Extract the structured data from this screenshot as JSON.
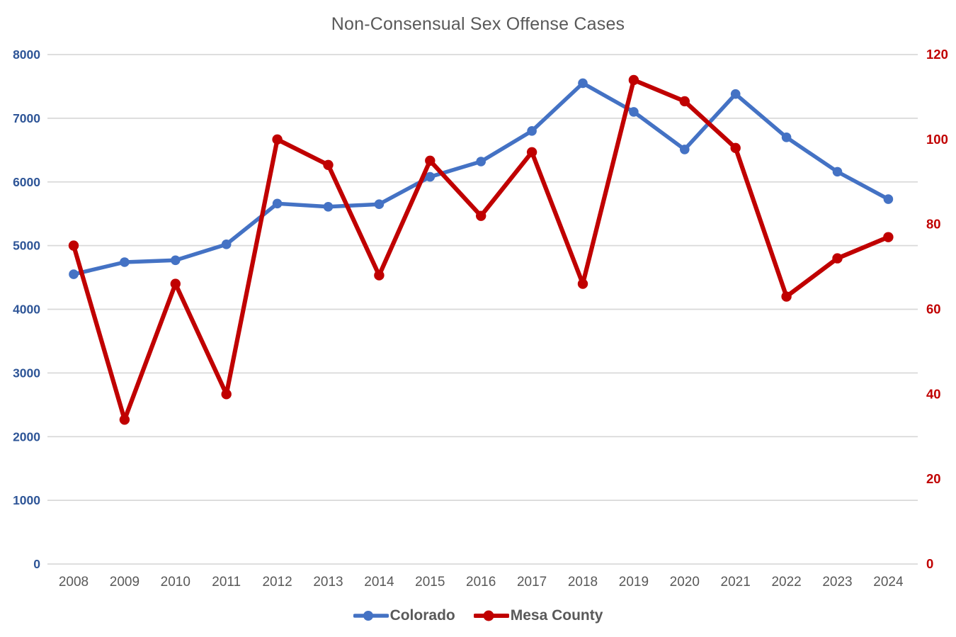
{
  "chart_data": {
    "type": "line",
    "title": "Non-Consensual Sex Offense Cases",
    "categories": [
      "2008",
      "2009",
      "2010",
      "2011",
      "2012",
      "2013",
      "2014",
      "2015",
      "2016",
      "2017",
      "2018",
      "2019",
      "2020",
      "2021",
      "2022",
      "2023",
      "2024"
    ],
    "series": [
      {
        "name": "Colorado",
        "axis": "left",
        "color": "#4472C4",
        "values": [
          4550,
          4740,
          4770,
          5020,
          5660,
          5610,
          5650,
          6080,
          6320,
          6800,
          7550,
          7100,
          6510,
          7380,
          6700,
          6160,
          5730
        ]
      },
      {
        "name": "Mesa County",
        "axis": "right",
        "color": "#C00000",
        "values": [
          75,
          34,
          66,
          40,
          100,
          94,
          68,
          95,
          82,
          97,
          66,
          114,
          109,
          98,
          63,
          72,
          77
        ]
      }
    ],
    "left_axis": {
      "min": 0,
      "max": 8000,
      "step": 1000,
      "tick_labels": [
        "0",
        "1000",
        "2000",
        "3000",
        "4000",
        "5000",
        "6000",
        "7000",
        "8000"
      ],
      "label_color": "#2E5597"
    },
    "right_axis": {
      "min": 0,
      "max": 120,
      "step": 20,
      "tick_labels": [
        "0",
        "20",
        "40",
        "60",
        "80",
        "100",
        "120"
      ],
      "label_color": "#C00000"
    },
    "grid": true,
    "gridline_color": "#D9D9D9",
    "xlabel": "",
    "ylabel": "",
    "x_tick_color": "#595959",
    "title_color": "#595959",
    "legend_position": "bottom"
  },
  "legend": {
    "items": [
      {
        "label": "Colorado",
        "color": "#4472C4"
      },
      {
        "label": "Mesa County",
        "color": "#C00000"
      }
    ]
  }
}
